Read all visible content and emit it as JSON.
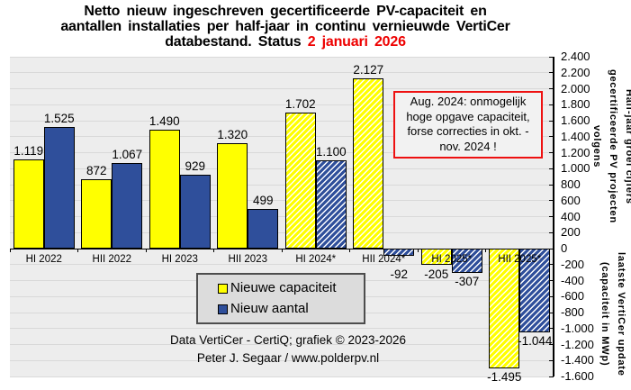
{
  "title": {
    "line1": "Netto nieuw ingeschreven gecertificeerde PV-capaciteit en",
    "line2": "aantallen installaties per half-jaar in continu vernieuwde VertiCer",
    "line3_prefix": "databestand. Status ",
    "line3_date": "2 januari 2026",
    "date_color": "#EE0000"
  },
  "chart_data": {
    "type": "bar",
    "categories": [
      "HI 2022",
      "HII 2022",
      "HI 2023",
      "HII 2023",
      "HI 2024*",
      "HII 2024*",
      "HI 2025*",
      "HII 2025*"
    ],
    "hatched": [
      false,
      false,
      false,
      false,
      true,
      true,
      true,
      true
    ],
    "series": [
      {
        "name": "Nieuwe capaciteit",
        "color": "#FFFF00",
        "values": [
          1119,
          872,
          1490,
          1320,
          1702,
          2127,
          -205,
          -1495
        ],
        "labels": [
          "1.119",
          "872",
          "1.490",
          "1.320",
          "1.702",
          "2.127",
          "-205",
          "-1.495"
        ]
      },
      {
        "name": "Nieuw aantal",
        "color": "#2F4F9B",
        "values": [
          1525,
          1067,
          929,
          499,
          1100,
          -92,
          -307,
          -1044
        ],
        "labels": [
          "1.525",
          "1.067",
          "929",
          "499",
          "1.100",
          "-92",
          "-307",
          "-1.044"
        ]
      }
    ],
    "ylim": [
      -1600,
      2400
    ],
    "ytick_step": 200,
    "ytick_labels": [
      "2.400",
      "2.200",
      "2.000",
      "1.800",
      "1.600",
      "1.400",
      "1.200",
      "1.000",
      "800",
      "600",
      "400",
      "200",
      "0",
      "-200",
      "-400",
      "-600",
      "-800",
      "-1.000",
      "-1.200",
      "-1.400",
      "-1.600"
    ],
    "grid": true,
    "legend_position": "inside-bottom-left-of-center",
    "ylabel_right_line1": "Half-jaar groei cijfers gecertificeerde PV projecten volgens",
    "ylabel_right_line2": "laatste VertiCer update (capaciteit in MWp)",
    "plot_bg_color": "#EDEDED",
    "grid_color": "#D9D9D9"
  },
  "annotation": {
    "border_color": "#EE1111",
    "lines": [
      "Aug. 2024: onmogelijk",
      "hoge opgave capaciteit,",
      "forse correcties in okt. -",
      "nov. 2024 !"
    ]
  },
  "legend": {
    "items": [
      {
        "label": "Nieuwe capaciteit",
        "color": "#FFFF00"
      },
      {
        "label": "Nieuw aantal",
        "color": "#2F4F9B"
      }
    ]
  },
  "footer": {
    "line1": "Data VertiCer - CertiQ; grafiek © 2023-2026",
    "line2": "Peter J. Segaar / www.polderpv.nl"
  }
}
